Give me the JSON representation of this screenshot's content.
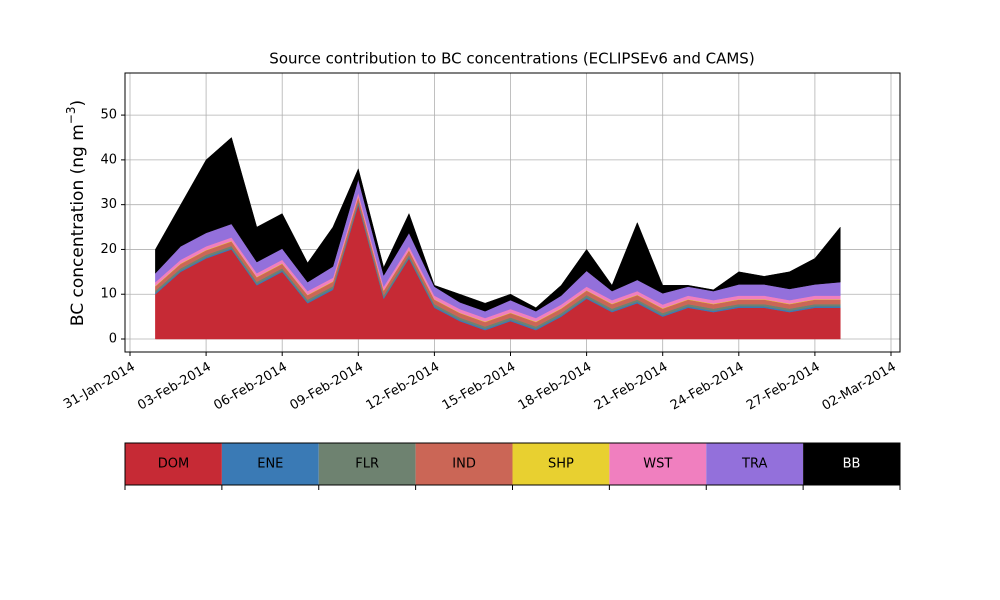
{
  "chart_data": {
    "type": "stacked_area",
    "title": "Source contribution to BC concentrations (ECLIPSEv6 and CAMS)",
    "ylabel": "BC concentration (ng m",
    "ylabel_sup": "−3",
    "ylabel_end": ")",
    "x": [
      "2014-02-01",
      "2014-02-02",
      "2014-02-03",
      "2014-02-04",
      "2014-02-05",
      "2014-02-06",
      "2014-02-07",
      "2014-02-08",
      "2014-02-09",
      "2014-02-10",
      "2014-02-11",
      "2014-02-12",
      "2014-02-13",
      "2014-02-14",
      "2014-02-15",
      "2014-02-16",
      "2014-02-17",
      "2014-02-18",
      "2014-02-19",
      "2014-02-20",
      "2014-02-21",
      "2014-02-22",
      "2014-02-23",
      "2014-02-24",
      "2014-02-25",
      "2014-02-26",
      "2014-02-27",
      "2014-02-28"
    ],
    "series": [
      {
        "name": "DOM",
        "color": "#c62a35",
        "values": [
          10,
          15,
          18,
          20,
          12,
          15,
          8,
          11,
          30,
          9,
          18,
          7,
          4,
          2,
          4,
          2,
          5,
          9,
          6,
          8,
          5,
          7,
          6,
          7,
          7,
          6,
          7,
          7
        ]
      },
      {
        "name": "ENE",
        "color": "#3a7ab5",
        "values": [
          0.3,
          0.3,
          0.3,
          0.3,
          0.3,
          0.3,
          0.3,
          0.3,
          0.3,
          0.3,
          0.3,
          0.3,
          0.3,
          0.3,
          0.3,
          0.3,
          0.3,
          0.3,
          0.3,
          0.3,
          0.3,
          0.3,
          0.3,
          0.3,
          0.3,
          0.3,
          0.3,
          0.3
        ]
      },
      {
        "name": "FLR",
        "color": "#6e8270",
        "values": [
          0.5,
          0.5,
          0.5,
          0.5,
          0.5,
          0.5,
          0.5,
          0.5,
          0.5,
          0.5,
          0.5,
          0.5,
          0.5,
          0.5,
          0.5,
          0.5,
          0.5,
          0.5,
          0.5,
          0.5,
          0.5,
          0.5,
          0.5,
          0.5,
          0.5,
          0.5,
          0.5,
          0.5
        ]
      },
      {
        "name": "IND",
        "color": "#cb6656",
        "values": [
          1,
          1,
          1,
          1,
          1,
          1,
          1,
          1,
          1,
          1,
          1,
          1,
          1,
          1,
          1,
          1,
          1,
          1,
          1,
          1,
          1,
          1,
          1,
          1,
          1,
          1,
          1,
          1
        ]
      },
      {
        "name": "SHP",
        "color": "#e8d030",
        "values": [
          0.1,
          0.1,
          0.1,
          0.1,
          0.1,
          0.1,
          0.1,
          0.1,
          0.1,
          0.1,
          0.1,
          0.1,
          0.1,
          0.1,
          0.1,
          0.1,
          0.1,
          0.1,
          0.1,
          0.1,
          0.1,
          0.1,
          0.1,
          0.1,
          0.1,
          0.1,
          0.1,
          0.1
        ]
      },
      {
        "name": "WST",
        "color": "#f07fbf",
        "values": [
          0.8,
          0.8,
          0.8,
          0.8,
          0.8,
          0.8,
          0.8,
          0.8,
          0.8,
          0.8,
          0.8,
          0.8,
          0.8,
          0.8,
          0.8,
          0.8,
          0.8,
          0.8,
          0.8,
          0.8,
          0.8,
          0.8,
          0.8,
          0.8,
          0.8,
          0.8,
          0.8,
          0.8
        ]
      },
      {
        "name": "TRA",
        "color": "#9370db",
        "values": [
          2,
          3,
          3,
          3,
          2.5,
          2.5,
          2,
          2.5,
          3,
          2.5,
          3,
          2,
          1.5,
          1.5,
          2,
          1.5,
          2,
          3.5,
          2,
          2.5,
          2.5,
          2,
          2,
          2.5,
          2.5,
          2.5,
          2.5,
          3
        ]
      },
      {
        "name": "BB",
        "color": "#000000",
        "values": [
          5.3,
          9.3,
          16.3,
          19.3,
          7.8,
          7.8,
          4.3,
          8.8,
          2.3,
          1.8,
          4.3,
          0.3,
          1.8,
          1.8,
          1.3,
          0.8,
          2.3,
          4.8,
          1.3,
          12.8,
          1.8,
          0.3,
          0.3,
          2.8,
          1.8,
          3.8,
          5.8,
          12.3
        ]
      }
    ],
    "xlim": [
      "2014-01-31",
      "2014-03-02"
    ],
    "xticks": [
      {
        "value": "2014-01-31",
        "label": "31-Jan-2014"
      },
      {
        "value": "2014-02-03",
        "label": "03-Feb-2014"
      },
      {
        "value": "2014-02-06",
        "label": "06-Feb-2014"
      },
      {
        "value": "2014-02-09",
        "label": "09-Feb-2014"
      },
      {
        "value": "2014-02-12",
        "label": "12-Feb-2014"
      },
      {
        "value": "2014-02-15",
        "label": "15-Feb-2014"
      },
      {
        "value": "2014-02-18",
        "label": "18-Feb-2014"
      },
      {
        "value": "2014-02-21",
        "label": "21-Feb-2014"
      },
      {
        "value": "2014-02-24",
        "label": "24-Feb-2014"
      },
      {
        "value": "2014-02-27",
        "label": "27-Feb-2014"
      },
      {
        "value": "2014-03-02",
        "label": "02-Mar-2014"
      }
    ],
    "ylim": [
      -2.9,
      59.4
    ],
    "yticks": [
      0,
      10,
      20,
      30,
      40,
      50
    ],
    "grid": true,
    "legend": "bottom"
  }
}
